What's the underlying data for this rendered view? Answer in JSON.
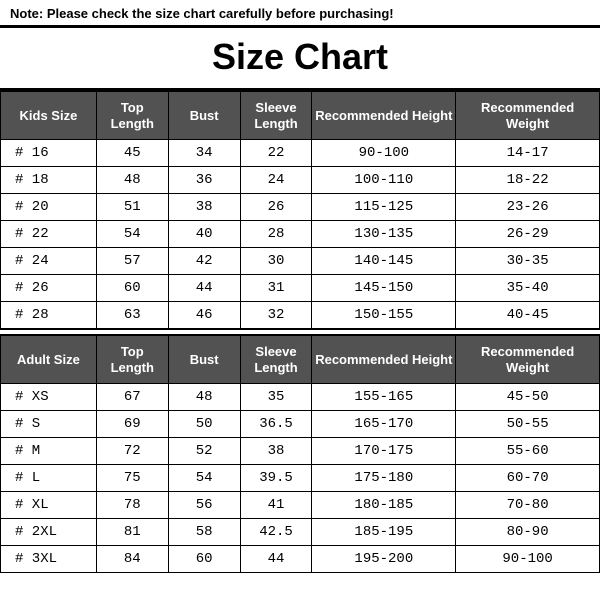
{
  "note": "Note: Please check the size chart carefully before purchasing!",
  "title": "Size Chart",
  "headers_kids": [
    "Kids Size",
    "Top Length",
    "Bust",
    "Sleeve Length",
    "Recommended Height",
    "Recommended Weight"
  ],
  "headers_adult": [
    "Adult Size",
    "Top Length",
    "Bust",
    "Sleeve Length",
    "Recommended Height",
    "Recommended Weight"
  ],
  "kids_rows": [
    {
      "size": "# 16",
      "top": "45",
      "bust": "34",
      "sleeve": "22",
      "height": "90-100",
      "weight": "14-17"
    },
    {
      "size": "# 18",
      "top": "48",
      "bust": "36",
      "sleeve": "24",
      "height": "100-110",
      "weight": "18-22"
    },
    {
      "size": "# 20",
      "top": "51",
      "bust": "38",
      "sleeve": "26",
      "height": "115-125",
      "weight": "23-26"
    },
    {
      "size": "# 22",
      "top": "54",
      "bust": "40",
      "sleeve": "28",
      "height": "130-135",
      "weight": "26-29"
    },
    {
      "size": "# 24",
      "top": "57",
      "bust": "42",
      "sleeve": "30",
      "height": "140-145",
      "weight": "30-35"
    },
    {
      "size": "# 26",
      "top": "60",
      "bust": "44",
      "sleeve": "31",
      "height": "145-150",
      "weight": "35-40"
    },
    {
      "size": "# 28",
      "top": "63",
      "bust": "46",
      "sleeve": "32",
      "height": "150-155",
      "weight": "40-45"
    }
  ],
  "adult_rows": [
    {
      "size": "# XS",
      "top": "67",
      "bust": "48",
      "sleeve": "35",
      "height": "155-165",
      "weight": "45-50"
    },
    {
      "size": "# S",
      "top": "69",
      "bust": "50",
      "sleeve": "36.5",
      "height": "165-170",
      "weight": "50-55"
    },
    {
      "size": "# M",
      "top": "72",
      "bust": "52",
      "sleeve": "38",
      "height": "170-175",
      "weight": "55-60"
    },
    {
      "size": "# L",
      "top": "75",
      "bust": "54",
      "sleeve": "39.5",
      "height": "175-180",
      "weight": "60-70"
    },
    {
      "size": "# XL",
      "top": "78",
      "bust": "56",
      "sleeve": "41",
      "height": "180-185",
      "weight": "70-80"
    },
    {
      "size": "# 2XL",
      "top": "81",
      "bust": "58",
      "sleeve": "42.5",
      "height": "185-195",
      "weight": "80-90"
    },
    {
      "size": "# 3XL",
      "top": "84",
      "bust": "60",
      "sleeve": "44",
      "height": "195-200",
      "weight": "90-100"
    }
  ],
  "colors": {
    "header_bg": "#525252",
    "header_fg": "#ffffff",
    "border": "#000000",
    "text": "#000000",
    "background": "#ffffff"
  }
}
